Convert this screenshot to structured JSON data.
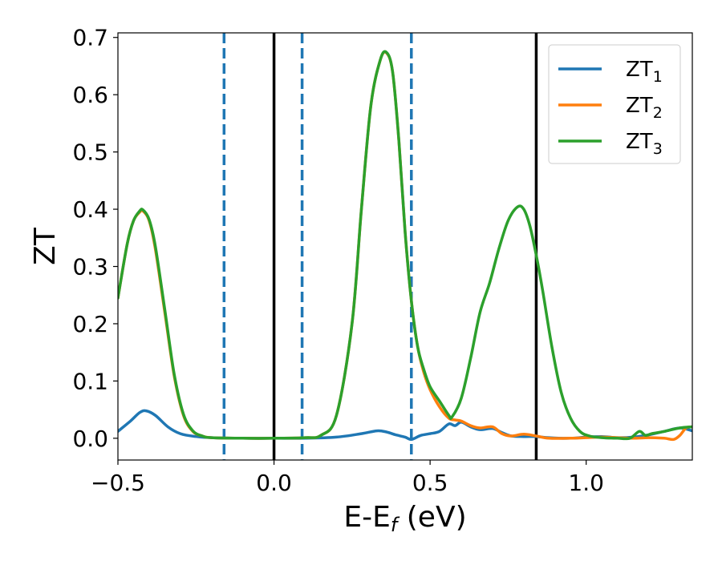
{
  "chart_data": {
    "type": "line",
    "xlabel_main": "E-E",
    "xlabel_sub": "f",
    "xlabel_unit": " (eV)",
    "ylabel": "ZT",
    "xlim": [
      -0.5,
      1.34
    ],
    "ylim": [
      -0.038,
      0.708
    ],
    "xticks": [
      {
        "value": -0.5,
        "label": "−0.5"
      },
      {
        "value": 0.0,
        "label": "0.0"
      },
      {
        "value": 0.5,
        "label": "0.5"
      },
      {
        "value": 1.0,
        "label": "1.0"
      }
    ],
    "yticks": [
      {
        "value": 0.0,
        "label": "0.0"
      },
      {
        "value": 0.1,
        "label": "0.1"
      },
      {
        "value": 0.2,
        "label": "0.2"
      },
      {
        "value": 0.3,
        "label": "0.3"
      },
      {
        "value": 0.4,
        "label": "0.4"
      },
      {
        "value": 0.5,
        "label": "0.5"
      },
      {
        "value": 0.6,
        "label": "0.6"
      },
      {
        "value": 0.7,
        "label": "0.7"
      }
    ],
    "grid": false,
    "legend_placement": "top-right",
    "vlines": [
      {
        "x": -0.16,
        "style": "dashed",
        "color": "#1f77b4"
      },
      {
        "x": 0.0,
        "style": "solid",
        "color": "#000000"
      },
      {
        "x": 0.09,
        "style": "dashed",
        "color": "#1f77b4"
      },
      {
        "x": 0.44,
        "style": "dashed",
        "color": "#1f77b4"
      },
      {
        "x": 0.84,
        "style": "solid",
        "color": "#000000"
      }
    ],
    "series": [
      {
        "name": "ZT",
        "sub": "1",
        "color": "#1f77b4",
        "x": [
          -0.5,
          -0.46,
          -0.43,
          -0.41,
          -0.38,
          -0.34,
          -0.3,
          -0.25,
          -0.2,
          -0.1,
          0.0,
          0.1,
          0.2,
          0.28,
          0.33,
          0.36,
          0.39,
          0.42,
          0.44,
          0.47,
          0.5,
          0.53,
          0.56,
          0.58,
          0.6,
          0.63,
          0.66,
          0.7,
          0.73,
          0.76,
          0.8,
          0.84,
          0.88,
          0.95,
          1.0,
          1.05,
          1.1,
          1.15,
          1.2,
          1.25,
          1.3,
          1.34
        ],
        "y": [
          0.012,
          0.03,
          0.045,
          0.048,
          0.04,
          0.02,
          0.008,
          0.003,
          0.001,
          0.0,
          0.0,
          0.0,
          0.002,
          0.008,
          0.013,
          0.011,
          0.006,
          0.002,
          -0.002,
          0.005,
          0.008,
          0.012,
          0.025,
          0.022,
          0.028,
          0.02,
          0.015,
          0.017,
          0.01,
          0.004,
          0.003,
          0.003,
          0.001,
          0.0,
          0.002,
          0.003,
          0.001,
          0.002,
          0.006,
          0.012,
          0.018,
          0.013
        ]
      },
      {
        "name": "ZT",
        "sub": "2",
        "color": "#ff7f0e",
        "x": [
          -0.5,
          -0.47,
          -0.45,
          -0.43,
          -0.42,
          -0.4,
          -0.38,
          -0.35,
          -0.32,
          -0.29,
          -0.26,
          -0.23,
          -0.2,
          -0.1,
          0.0,
          0.1,
          0.15,
          0.2,
          0.25,
          0.28,
          0.31,
          0.34,
          0.36,
          0.38,
          0.4,
          0.42,
          0.44,
          0.46,
          0.48,
          0.5,
          0.53,
          0.56,
          0.58,
          0.6,
          0.63,
          0.66,
          0.7,
          0.73,
          0.76,
          0.8,
          0.84,
          0.88,
          0.95,
          1.0,
          1.05,
          1.1,
          1.15,
          1.2,
          1.25,
          1.28,
          1.3,
          1.32,
          1.34
        ],
        "y": [
          0.245,
          0.34,
          0.38,
          0.395,
          0.397,
          0.38,
          0.33,
          0.22,
          0.11,
          0.04,
          0.012,
          0.004,
          0.001,
          0.0,
          0.0,
          0.001,
          0.005,
          0.04,
          0.2,
          0.4,
          0.58,
          0.66,
          0.673,
          0.64,
          0.52,
          0.36,
          0.24,
          0.16,
          0.115,
          0.085,
          0.055,
          0.035,
          0.032,
          0.03,
          0.022,
          0.018,
          0.02,
          0.008,
          0.004,
          0.007,
          0.004,
          0.0,
          0.0,
          0.001,
          0.002,
          0.001,
          0.0,
          0.001,
          0.0,
          -0.002,
          0.005,
          0.018,
          0.02
        ]
      },
      {
        "name": "ZT",
        "sub": "3",
        "color": "#2ca02c",
        "x": [
          -0.5,
          -0.47,
          -0.45,
          -0.43,
          -0.42,
          -0.4,
          -0.38,
          -0.35,
          -0.32,
          -0.29,
          -0.26,
          -0.23,
          -0.2,
          -0.1,
          0.0,
          0.1,
          0.15,
          0.2,
          0.25,
          0.28,
          0.31,
          0.34,
          0.36,
          0.38,
          0.4,
          0.42,
          0.44,
          0.46,
          0.48,
          0.5,
          0.53,
          0.56,
          0.57,
          0.6,
          0.63,
          0.66,
          0.69,
          0.72,
          0.75,
          0.78,
          0.8,
          0.82,
          0.84,
          0.86,
          0.89,
          0.92,
          0.95,
          0.98,
          1.01,
          1.05,
          1.1,
          1.14,
          1.17,
          1.19,
          1.21,
          1.25,
          1.3,
          1.34
        ],
        "y": [
          0.245,
          0.34,
          0.38,
          0.397,
          0.399,
          0.382,
          0.335,
          0.225,
          0.113,
          0.042,
          0.013,
          0.004,
          0.001,
          0.0,
          0.0,
          0.001,
          0.005,
          0.04,
          0.2,
          0.4,
          0.58,
          0.66,
          0.674,
          0.64,
          0.52,
          0.36,
          0.24,
          0.16,
          0.12,
          0.09,
          0.065,
          0.04,
          0.037,
          0.07,
          0.14,
          0.22,
          0.27,
          0.33,
          0.38,
          0.404,
          0.4,
          0.37,
          0.32,
          0.26,
          0.16,
          0.08,
          0.035,
          0.012,
          0.004,
          0.001,
          0.0,
          0.0,
          0.012,
          0.005,
          0.008,
          0.012,
          0.018,
          0.02
        ]
      }
    ]
  }
}
